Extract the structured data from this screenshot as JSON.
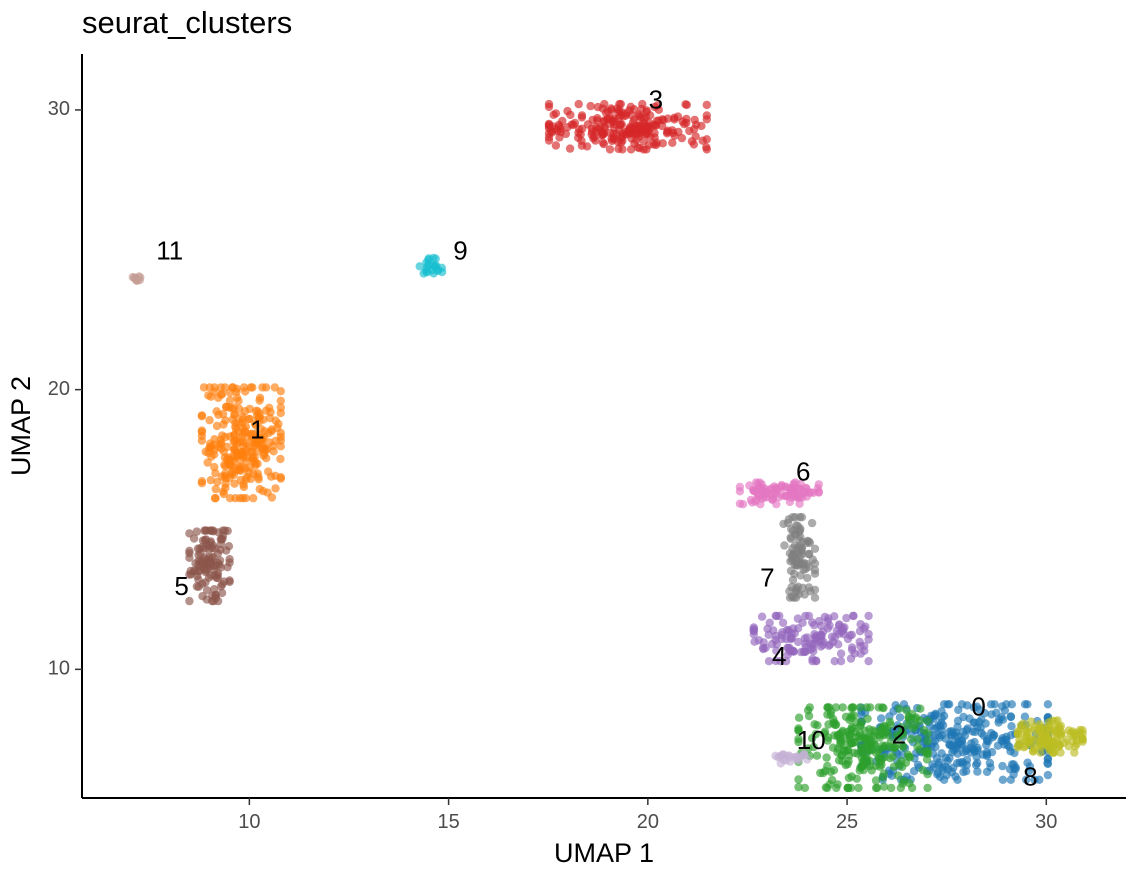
{
  "chart_data": {
    "type": "scatter",
    "title": "seurat_clusters",
    "xlabel": "UMAP 1",
    "ylabel": "UMAP 2",
    "xlim": [
      5.8,
      32.0
    ],
    "ylim": [
      5.4,
      32.0
    ],
    "xticks": [
      10,
      15,
      20,
      25,
      30
    ],
    "yticks": [
      10,
      20,
      30
    ],
    "grid": false,
    "legend": "none",
    "point_alpha": 0.65,
    "clusters": [
      {
        "label": "0",
        "color": "#1f77b4",
        "label_pos": [
          28.3,
          8.6
        ],
        "center": [
          27.7,
          7.4
        ],
        "spread": [
          1.3,
          0.75
        ],
        "n": 320
      },
      {
        "label": "1",
        "color": "#ff7f0e",
        "label_pos": [
          10.2,
          18.5
        ],
        "center": [
          9.8,
          18.1
        ],
        "spread": [
          0.55,
          1.1
        ],
        "n": 260
      },
      {
        "label": "2",
        "color": "#2ca02c",
        "label_pos": [
          26.3,
          7.6
        ],
        "center": [
          25.4,
          7.2
        ],
        "spread": [
          0.9,
          0.8
        ],
        "n": 260
      },
      {
        "label": "3",
        "color": "#d62728",
        "label_pos": [
          20.2,
          30.3
        ],
        "center": [
          19.5,
          29.4
        ],
        "spread": [
          1.1,
          0.45
        ],
        "n": 230
      },
      {
        "label": "4",
        "color": "#9467bd",
        "label_pos": [
          23.3,
          10.4
        ],
        "center": [
          24.1,
          11.1
        ],
        "spread": [
          0.8,
          0.45
        ],
        "n": 140
      },
      {
        "label": "5",
        "color": "#8c564b",
        "label_pos": [
          8.3,
          12.9
        ],
        "center": [
          9.0,
          13.7
        ],
        "spread": [
          0.28,
          0.7
        ],
        "n": 120
      },
      {
        "label": "6",
        "color": "#e377c2",
        "label_pos": [
          23.9,
          17.0
        ],
        "center": [
          23.3,
          16.3
        ],
        "spread": [
          0.55,
          0.22
        ],
        "n": 100
      },
      {
        "label": "7",
        "color": "#7f7f7f",
        "label_pos": [
          23.0,
          13.2
        ],
        "center": [
          23.8,
          14.0
        ],
        "spread": [
          0.22,
          0.8
        ],
        "n": 90
      },
      {
        "label": "8",
        "color": "#bcbd22",
        "label_pos": [
          29.6,
          6.1
        ],
        "center": [
          30.1,
          7.6
        ],
        "spread": [
          0.45,
          0.32
        ],
        "n": 120
      },
      {
        "label": "9",
        "color": "#17becf",
        "label_pos": [
          15.3,
          24.9
        ],
        "center": [
          14.6,
          24.4
        ],
        "spread": [
          0.18,
          0.17
        ],
        "n": 22
      },
      {
        "label": "10",
        "color": "#c5b0d5",
        "label_pos": [
          24.1,
          7.4
        ],
        "center": [
          23.6,
          6.8
        ],
        "spread": [
          0.22,
          0.09
        ],
        "n": 22
      },
      {
        "label": "11",
        "color": "#c49c94",
        "label_pos": [
          8.0,
          24.9
        ],
        "center": [
          7.2,
          24.0
        ],
        "spread": [
          0.07,
          0.06
        ],
        "n": 10
      }
    ]
  }
}
